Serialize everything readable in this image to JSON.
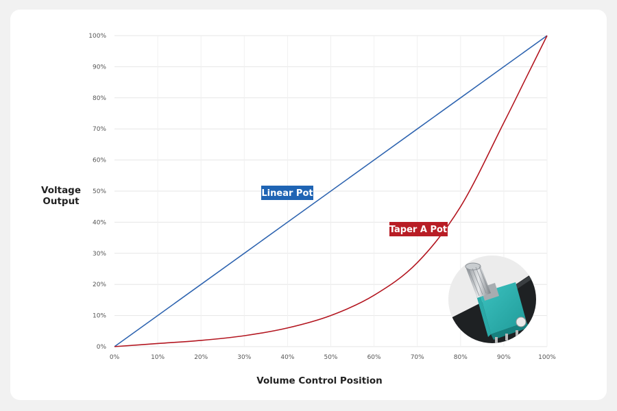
{
  "chart_data": {
    "type": "line",
    "title": "",
    "xlabel": "Volume Control Position",
    "ylabel_lines": [
      "Voltage",
      "Output"
    ],
    "xlim": [
      0,
      100
    ],
    "ylim": [
      0,
      100
    ],
    "x_ticks": [
      "0%",
      "10%",
      "20%",
      "30%",
      "40%",
      "50%",
      "60%",
      "70%",
      "80%",
      "90%",
      "100%"
    ],
    "y_ticks": [
      "0%",
      "10%",
      "20%",
      "30%",
      "40%",
      "50%",
      "60%",
      "70%",
      "80%",
      "90%",
      "100%"
    ],
    "grid": true,
    "series": [
      {
        "name": "Linear Pot",
        "color": "#2e64b0",
        "label_bg": "#1f64b4",
        "x": [
          0,
          10,
          20,
          30,
          40,
          50,
          60,
          70,
          80,
          90,
          100
        ],
        "y": [
          0,
          10,
          20,
          30,
          40,
          50,
          60,
          70,
          80,
          90,
          100
        ]
      },
      {
        "name": "Taper A Pot",
        "color": "#b3151f",
        "label_bg": "#b81d25",
        "x": [
          0,
          10,
          20,
          30,
          40,
          50,
          60,
          70,
          80,
          90,
          95,
          100
        ],
        "y": [
          0,
          1,
          2,
          3.5,
          6,
          10,
          16.5,
          27,
          45,
          72,
          86,
          100
        ]
      }
    ],
    "inset_image": "rotary-potentiometer-photo"
  }
}
